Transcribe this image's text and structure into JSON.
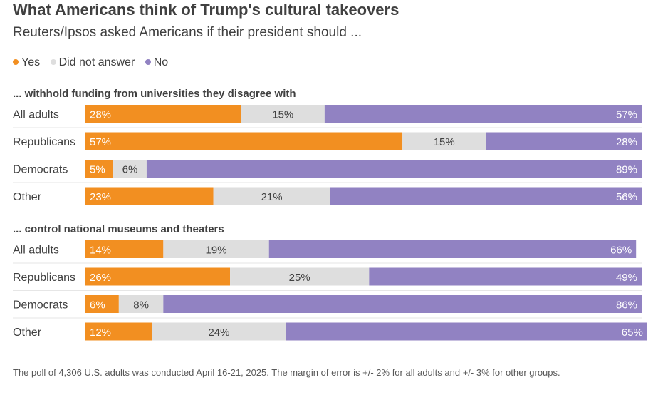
{
  "title": "What Americans think of Trump's cultural takeovers",
  "subtitle": "Reuters/Ipsos asked Americans if their president should ...",
  "legend": [
    {
      "label": "Yes",
      "color": "#f28f21"
    },
    {
      "label": "Did not answer",
      "color": "#dedede"
    },
    {
      "label": "No",
      "color": "#9182c2"
    }
  ],
  "footnote": "The poll of 4,306 U.S. adults was conducted April 16-21, 2025. The margin of error is +/- 2% for all adults and +/- 3% for other groups.",
  "chart_data": [
    {
      "type": "bar",
      "stacked": true,
      "orientation": "horizontal",
      "title": "... withhold funding from universities they disagree with",
      "categories": [
        "All adults",
        "Republicans",
        "Democrats",
        "Other"
      ],
      "series": [
        {
          "name": "Yes",
          "values": [
            28,
            57,
            5,
            23
          ],
          "color": "#f28f21",
          "text_color": "#ffffff"
        },
        {
          "name": "Did not answer",
          "values": [
            15,
            15,
            6,
            21
          ],
          "color": "#dedede",
          "text_color": "#404040"
        },
        {
          "name": "No",
          "values": [
            57,
            28,
            89,
            56
          ],
          "color": "#9182c2",
          "text_color": "#ffffff"
        }
      ],
      "value_suffix": "%",
      "xlim": [
        0,
        100
      ]
    },
    {
      "type": "bar",
      "stacked": true,
      "orientation": "horizontal",
      "title": "... control national museums and theaters",
      "categories": [
        "All adults",
        "Republicans",
        "Democrats",
        "Other"
      ],
      "series": [
        {
          "name": "Yes",
          "values": [
            14,
            26,
            6,
            12
          ],
          "color": "#f28f21",
          "text_color": "#ffffff"
        },
        {
          "name": "Did not answer",
          "values": [
            19,
            25,
            8,
            24
          ],
          "color": "#dedede",
          "text_color": "#404040"
        },
        {
          "name": "No",
          "values": [
            66,
            49,
            86,
            65
          ],
          "color": "#9182c2",
          "text_color": "#ffffff"
        }
      ],
      "value_suffix": "%",
      "xlim": [
        0,
        100
      ]
    }
  ]
}
